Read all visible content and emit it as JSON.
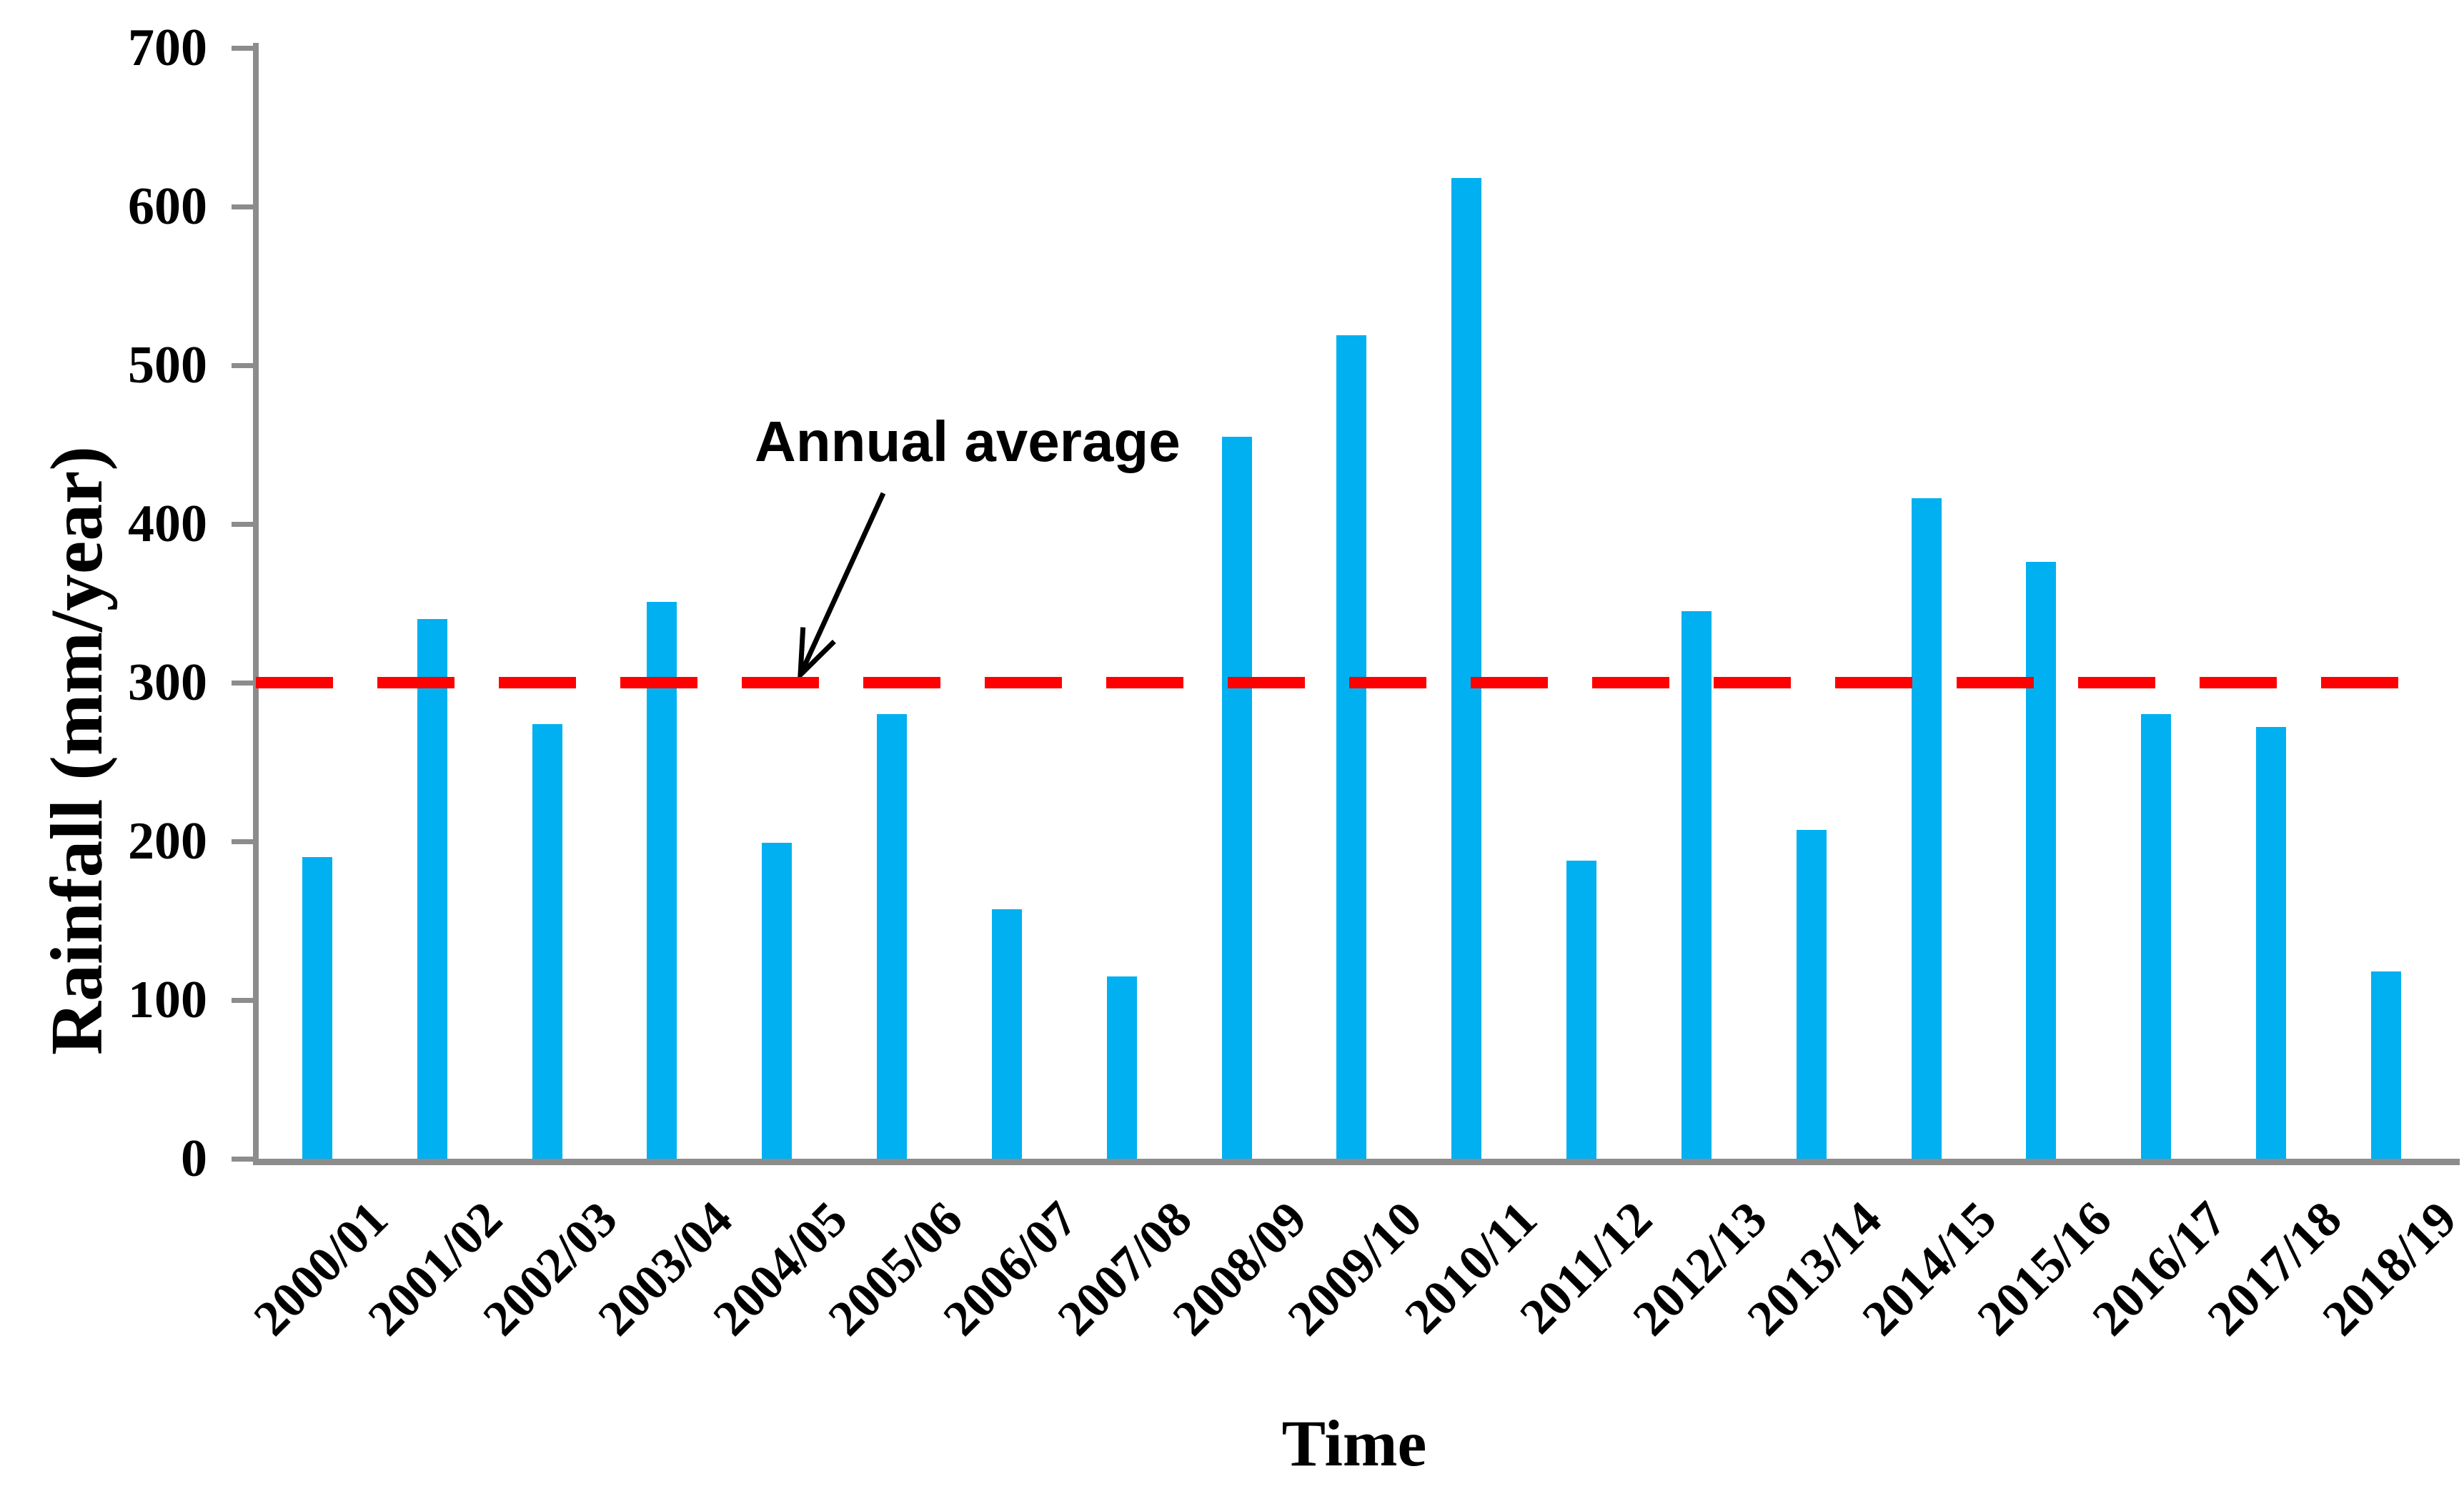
{
  "chart_data": {
    "type": "bar",
    "title": "",
    "xlabel": "Time",
    "ylabel": "Rainfall (mm/year)",
    "categories": [
      "2000/01",
      "2001/02",
      "2002/03",
      "2003/04",
      "2004/05",
      "2005/06",
      "2006/07",
      "2007/08",
      "2008/09",
      "2009/10",
      "2010/11",
      "2011/12",
      "2012/13",
      "2013/14",
      "2014/15",
      "2015/16",
      "2016/17",
      "2017/18",
      "2018/19"
    ],
    "values": [
      190,
      340,
      274,
      351,
      199,
      280,
      157,
      115,
      455,
      519,
      618,
      188,
      345,
      207,
      416,
      376,
      280,
      272,
      118
    ],
    "ylim": [
      0,
      700
    ],
    "yticks": [
      0,
      100,
      200,
      300,
      400,
      500,
      600,
      700
    ],
    "grid": false,
    "legend_position": "none",
    "average_line": {
      "label": "Annual average",
      "value": 300
    },
    "colors": {
      "bar": "#00B0F0",
      "average_line": "#FF0000",
      "axis": "#8C8C8C",
      "text": "#000000",
      "background": "#FFFFFF"
    }
  }
}
